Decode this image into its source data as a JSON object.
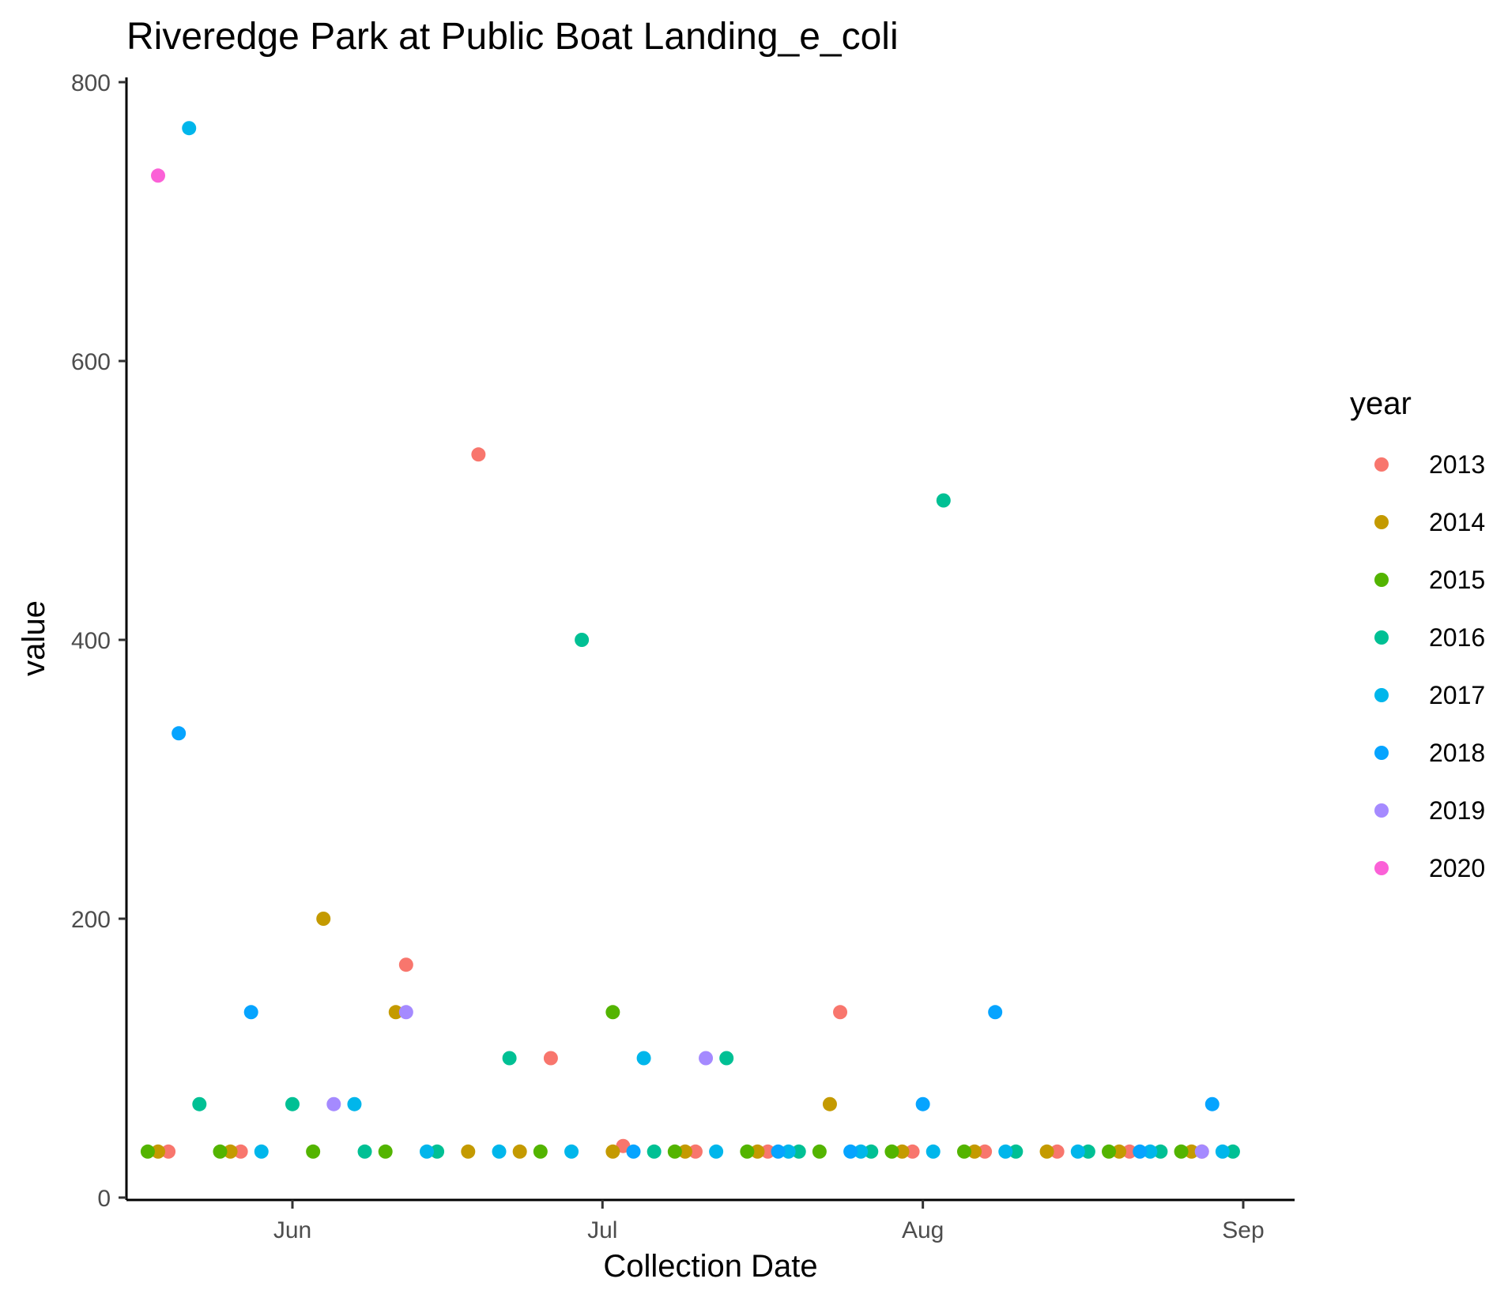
{
  "chart_data": {
    "type": "scatter",
    "title": "Riveredge Park at Public Boat Landing_e_coli",
    "xlabel": "Collection Date",
    "ylabel": "value",
    "x_axis_type": "date (day-of-year, month ticks)",
    "xlim": [
      "May 15",
      "Sep 5"
    ],
    "ylim": [
      0,
      800
    ],
    "x_ticks": [
      {
        "date": "Jun 1",
        "label": "Jun"
      },
      {
        "date": "Jul 1",
        "label": "Jul"
      },
      {
        "date": "Aug 1",
        "label": "Aug"
      },
      {
        "date": "Sep 1",
        "label": "Sep"
      }
    ],
    "y_ticks": [
      0,
      200,
      400,
      600,
      800
    ],
    "grid": false,
    "legend": {
      "title": "year",
      "position": "right"
    },
    "series": [
      {
        "name": "2013",
        "color": "#F8766D",
        "points": [
          {
            "x": "May 20",
            "y": 33
          },
          {
            "x": "May 27",
            "y": 33
          },
          {
            "x": "Jun 12",
            "y": 167
          },
          {
            "x": "Jun 19",
            "y": 533
          },
          {
            "x": "Jun 26",
            "y": 100
          },
          {
            "x": "Jul 3",
            "y": 37
          },
          {
            "x": "Jul 10",
            "y": 33
          },
          {
            "x": "Jul 17",
            "y": 33
          },
          {
            "x": "Jul 24",
            "y": 133
          },
          {
            "x": "Jul 31",
            "y": 33
          },
          {
            "x": "Aug 7",
            "y": 33
          },
          {
            "x": "Aug 14",
            "y": 33
          },
          {
            "x": "Aug 21",
            "y": 33
          },
          {
            "x": "Aug 28",
            "y": 33
          }
        ]
      },
      {
        "name": "2014",
        "color": "#C49A00",
        "points": [
          {
            "x": "May 19",
            "y": 33
          },
          {
            "x": "May 26",
            "y": 33
          },
          {
            "x": "Jun 4",
            "y": 200
          },
          {
            "x": "Jun 11",
            "y": 133
          },
          {
            "x": "Jun 18",
            "y": 33
          },
          {
            "x": "Jun 23",
            "y": 33
          },
          {
            "x": "Jul 2",
            "y": 33
          },
          {
            "x": "Jul 9",
            "y": 33
          },
          {
            "x": "Jul 16",
            "y": 33
          },
          {
            "x": "Jul 23",
            "y": 67
          },
          {
            "x": "Jul 30",
            "y": 33
          },
          {
            "x": "Aug 6",
            "y": 33
          },
          {
            "x": "Aug 13",
            "y": 33
          },
          {
            "x": "Aug 20",
            "y": 33
          },
          {
            "x": "Aug 27",
            "y": 33
          }
        ]
      },
      {
        "name": "2015",
        "color": "#53B400",
        "points": [
          {
            "x": "May 18",
            "y": 33
          },
          {
            "x": "May 25",
            "y": 33
          },
          {
            "x": "Jun 3",
            "y": 33
          },
          {
            "x": "Jun 10",
            "y": 33
          },
          {
            "x": "Jun 25",
            "y": 33
          },
          {
            "x": "Jul 2",
            "y": 133
          },
          {
            "x": "Jul 8",
            "y": 33
          },
          {
            "x": "Jul 15",
            "y": 33
          },
          {
            "x": "Jul 22",
            "y": 33
          },
          {
            "x": "Jul 29",
            "y": 33
          },
          {
            "x": "Aug 5",
            "y": 33
          },
          {
            "x": "Aug 19",
            "y": 33
          },
          {
            "x": "Aug 26",
            "y": 33
          }
        ]
      },
      {
        "name": "2016",
        "color": "#00C094",
        "points": [
          {
            "x": "May 23",
            "y": 67
          },
          {
            "x": "Jun 1",
            "y": 67
          },
          {
            "x": "Jun 8",
            "y": 33
          },
          {
            "x": "Jun 15",
            "y": 33
          },
          {
            "x": "Jun 22",
            "y": 100
          },
          {
            "x": "Jun 29",
            "y": 400
          },
          {
            "x": "Jul 6",
            "y": 33
          },
          {
            "x": "Jul 13",
            "y": 100
          },
          {
            "x": "Jul 20",
            "y": 33
          },
          {
            "x": "Jul 27",
            "y": 33
          },
          {
            "x": "Aug 3",
            "y": 500
          },
          {
            "x": "Aug 10",
            "y": 33
          },
          {
            "x": "Aug 17",
            "y": 33
          },
          {
            "x": "Aug 24",
            "y": 33
          },
          {
            "x": "Aug 31",
            "y": 33
          }
        ]
      },
      {
        "name": "2017",
        "color": "#00B6EB",
        "points": [
          {
            "x": "May 22",
            "y": 767
          },
          {
            "x": "May 29",
            "y": 33
          },
          {
            "x": "Jun 7",
            "y": 67
          },
          {
            "x": "Jun 14",
            "y": 33
          },
          {
            "x": "Jun 21",
            "y": 33
          },
          {
            "x": "Jun 28",
            "y": 33
          },
          {
            "x": "Jul 5",
            "y": 100
          },
          {
            "x": "Jul 12",
            "y": 33
          },
          {
            "x": "Jul 19",
            "y": 33
          },
          {
            "x": "Jul 26",
            "y": 33
          },
          {
            "x": "Aug 2",
            "y": 33
          },
          {
            "x": "Aug 9",
            "y": 33
          },
          {
            "x": "Aug 16",
            "y": 33
          },
          {
            "x": "Aug 23",
            "y": 33
          },
          {
            "x": "Aug 30",
            "y": 33
          }
        ]
      },
      {
        "name": "2018",
        "color": "#06A4FF",
        "points": [
          {
            "x": "May 21",
            "y": 333
          },
          {
            "x": "May 28",
            "y": 133
          },
          {
            "x": "Jul 4",
            "y": 33
          },
          {
            "x": "Jul 18",
            "y": 33
          },
          {
            "x": "Jul 25",
            "y": 33
          },
          {
            "x": "Aug 1",
            "y": 67
          },
          {
            "x": "Aug 8",
            "y": 133
          },
          {
            "x": "Aug 22",
            "y": 33
          },
          {
            "x": "Aug 29",
            "y": 67
          }
        ]
      },
      {
        "name": "2019",
        "color": "#A58AFF",
        "points": [
          {
            "x": "Jun 5",
            "y": 67
          },
          {
            "x": "Jun 12",
            "y": 133
          },
          {
            "x": "Jul 11",
            "y": 100
          },
          {
            "x": "Aug 28",
            "y": 33
          }
        ]
      },
      {
        "name": "2020",
        "color": "#FB61D7",
        "points": [
          {
            "x": "May 19",
            "y": 733
          }
        ]
      }
    ]
  }
}
